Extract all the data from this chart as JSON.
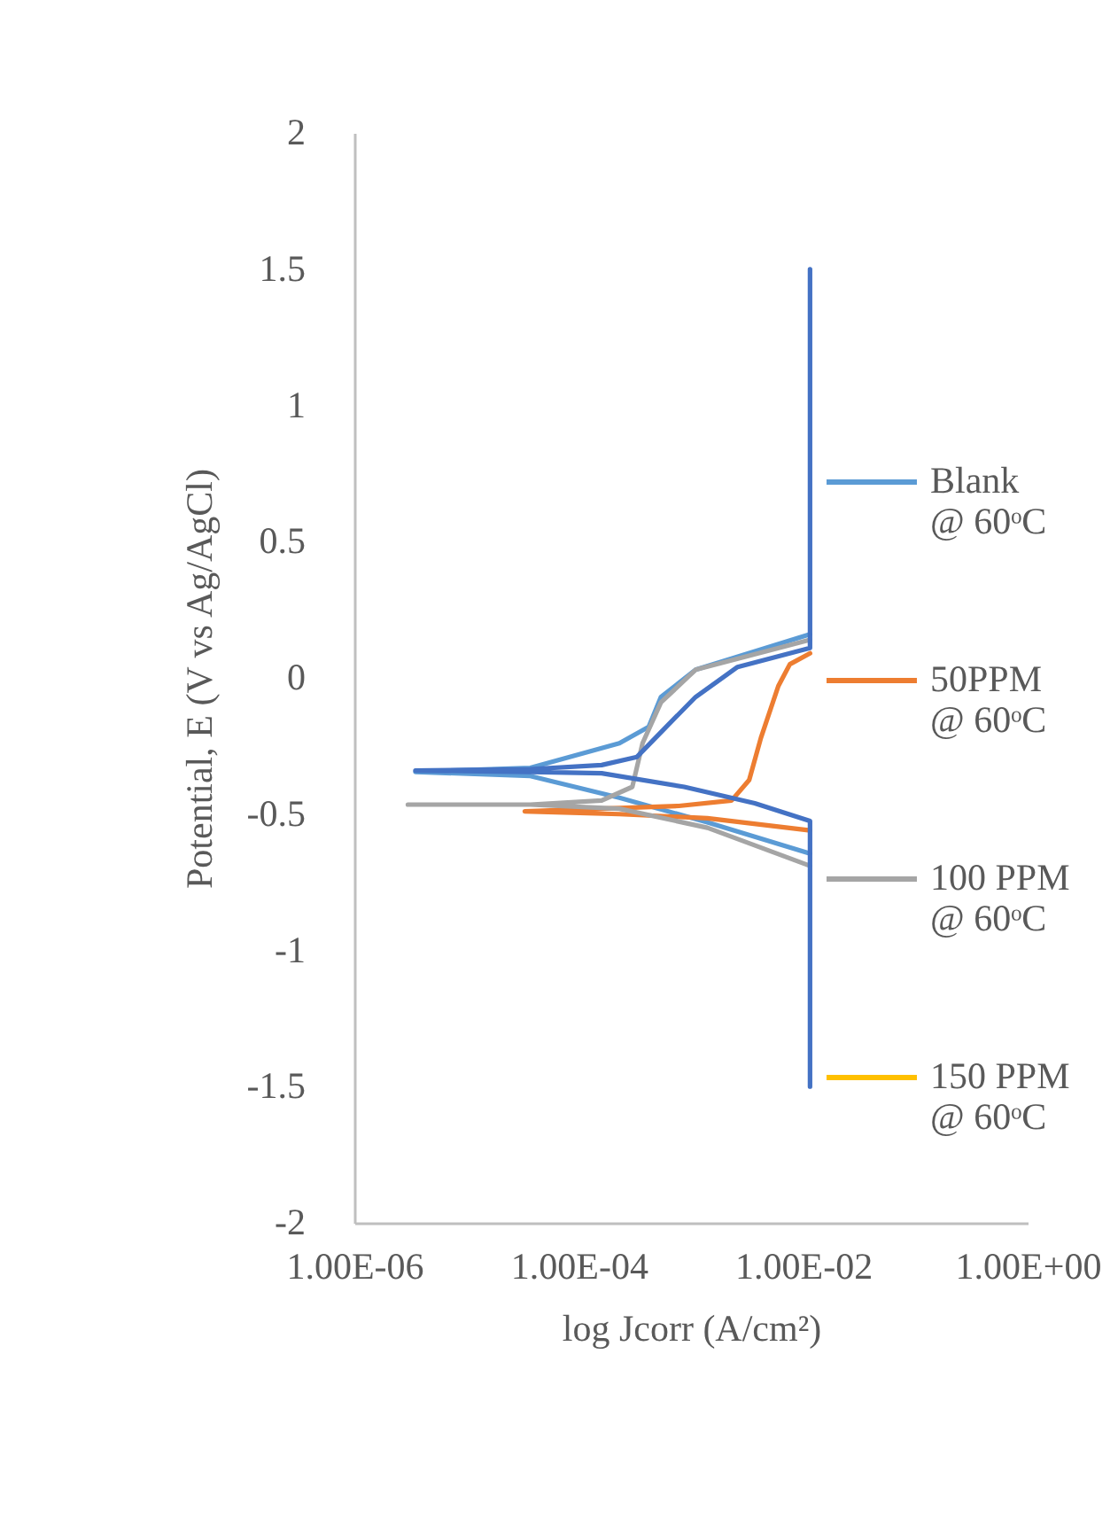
{
  "chart_data": {
    "type": "line",
    "xlabel": "log Jcorr (A/cm²)",
    "ylabel": "Potential, E (V vs Ag/AgCl)",
    "log": "x",
    "xlim": [
      1e-06,
      1
    ],
    "xticks": [
      {
        "value": 1e-06,
        "label": "1.00E-06"
      },
      {
        "value": 0.0001,
        "label": "1.00E-04"
      },
      {
        "value": 0.01,
        "label": "1.00E-02"
      },
      {
        "value": 1,
        "label": "1.00E+00"
      }
    ],
    "ylim": [
      -2,
      2
    ],
    "yticks": [
      -2,
      -1.5,
      -1,
      -0.5,
      0,
      0.5,
      1,
      1.5,
      2
    ],
    "legend": "right",
    "grid": false,
    "marker": "none",
    "line_style": "solid",
    "series": [
      {
        "name": "Blank @ 60ᵒC",
        "color": "#5b9bd5",
        "x": [
          0.0115,
          0.0014,
          0.00023,
          3.7e-05,
          3.5e-06,
          3.7e-05,
          0.00023,
          0.00042,
          0.00054,
          0.0011,
          0.0115
        ],
        "values": [
          -0.645,
          -0.53,
          -0.44,
          -0.36,
          -0.345,
          -0.33,
          -0.24,
          -0.18,
          -0.07,
          0.03,
          0.16
        ]
      },
      {
        "name": "50PPM @ 60ᵒC",
        "color": "#ed7d31",
        "x": [
          0.0115,
          0.0014,
          0.00023,
          3.3e-05,
          0.00078,
          0.0023,
          0.0033,
          0.0042,
          0.006,
          0.0076,
          0.0115
        ],
        "values": [
          -0.56,
          -0.515,
          -0.5,
          -0.49,
          -0.47,
          -0.45,
          -0.375,
          -0.22,
          -0.03,
          0.05,
          0.09
        ]
      },
      {
        "name": "100 PPM @ 60ᵒC",
        "color": "#a5a5a5",
        "x": [
          0.0115,
          0.0014,
          0.00023,
          3.7e-05,
          3e-06,
          3.7e-05,
          0.00016,
          0.0003,
          0.00037,
          0.00054,
          0.0011,
          0.0115
        ],
        "values": [
          -0.69,
          -0.55,
          -0.48,
          -0.465,
          -0.465,
          -0.465,
          -0.45,
          -0.4,
          -0.24,
          -0.09,
          0.03,
          0.14
        ]
      },
      {
        "name": "150 PPM @ 60ᵒC",
        "color": "#ffc000"
      },
      {
        "color": "#4472c4",
        "x": [
          0.0115,
          0.0115,
          0.0037,
          0.00087,
          0.00016,
          3.7e-05,
          3.5e-06,
          3.7e-05,
          0.00016,
          0.00033,
          0.0006,
          0.0011,
          0.0026,
          0.0115,
          0.0115
        ],
        "values": [
          -1.5,
          -0.525,
          -0.46,
          -0.4,
          -0.35,
          -0.345,
          -0.34,
          -0.335,
          -0.32,
          -0.29,
          -0.18,
          -0.07,
          0.04,
          0.11,
          1.5
        ]
      }
    ]
  }
}
